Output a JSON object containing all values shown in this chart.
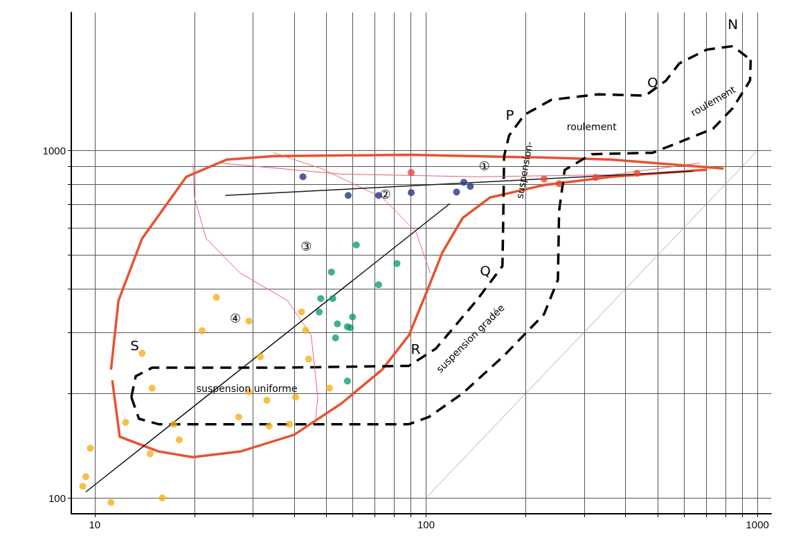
{
  "chart_data": {
    "type": "scatter",
    "log": "xy",
    "grid": true,
    "xlim": [
      8.5,
      1100
    ],
    "ylim": [
      90,
      2500
    ],
    "xticks": [
      10,
      {
        "value": 20,
        "label": null
      },
      {
        "value": 30,
        "label": null
      },
      {
        "value": 40,
        "label": null
      },
      {
        "value": 50,
        "label": null
      },
      {
        "value": 60,
        "label": null
      },
      {
        "value": 70,
        "label": null
      },
      {
        "value": 80,
        "label": null
      },
      {
        "value": 90,
        "label": null
      },
      100,
      {
        "value": 200,
        "label": null
      },
      {
        "value": 300,
        "label": null
      },
      {
        "value": 400,
        "label": null
      },
      {
        "value": 500,
        "label": null
      },
      {
        "value": 600,
        "label": null
      },
      {
        "value": 700,
        "label": null
      },
      {
        "value": 800,
        "label": null
      },
      {
        "value": 900,
        "label": null
      },
      1000
    ],
    "yticks": [
      100,
      {
        "value": 200,
        "label": null
      },
      {
        "value": 300,
        "label": null
      },
      {
        "value": 400,
        "label": null
      },
      {
        "value": 500,
        "label": null
      },
      {
        "value": 600,
        "label": null
      },
      {
        "value": 700,
        "label": null
      },
      {
        "value": 800,
        "label": null
      },
      {
        "value": 900,
        "label": null
      },
      1000
    ],
    "series": [
      {
        "marker": "circle",
        "color": "#f5b21c",
        "x": [
          9.2,
          9.4,
          9.7,
          11.2,
          12.4,
          13.9,
          14.9,
          14.7,
          16.0,
          17.3,
          18.0,
          21.1,
          23.3,
          27.2,
          29.2,
          29.2,
          31.6,
          33.1,
          33.6,
          38.7,
          40.4,
          42.1,
          43.3,
          44.2,
          51.1
        ],
        "values": [
          108,
          115,
          139,
          97,
          165,
          261,
          207,
          134,
          100,
          163,
          147,
          303,
          378,
          171,
          323,
          202,
          255,
          191,
          161,
          163,
          195,
          343,
          304,
          251,
          207
        ]
      },
      {
        "marker": "circle",
        "color": "#0e9f6e",
        "x": [
          61.6,
          51.8,
          81.7,
          71.9,
          48.1,
          52.3,
          47.6,
          60.0,
          54.0,
          57.9,
          59.1,
          53.3,
          57.9
        ],
        "values": [
          535,
          447,
          473,
          411,
          375,
          375,
          343,
          332,
          317,
          311,
          309,
          289,
          217
        ]
      },
      {
        "marker": "circle",
        "color": "#27348b",
        "x": [
          42.5,
          58.2,
          71.9,
          90.2,
          123.6,
          130,
          136
        ],
        "values": [
          841,
          743,
          743,
          757,
          760,
          811,
          789
        ]
      },
      {
        "marker": "circle",
        "color": "#e8473a",
        "x": [
          90.2,
          227,
          252,
          325,
          433
        ],
        "values": [
          865,
          829,
          803,
          837,
          861
        ]
      },
      {
        "type": "line",
        "color": "#e8522f",
        "line_style": "solid",
        "x": [
          11.2,
          11.8,
          13.9,
          18.9,
          25.0,
          34.7,
          88.8,
          227,
          363,
          791
        ],
        "values": [
          234,
          370,
          558,
          841,
          942,
          964,
          973,
          955,
          942,
          888
        ]
      },
      {
        "type": "line",
        "color": "#e8522f",
        "line_style": "solid",
        "x": [
          11.3,
          11.9,
          15.6,
          19.8,
          27.5,
          40.0,
          55.5,
          73.7,
          88.8,
          100,
          112,
          129,
          156,
          227,
          363,
          700
        ],
        "values": [
          218,
          150,
          136,
          131,
          136,
          152,
          187,
          234,
          294,
          388,
          509,
          640,
          733,
          796,
          841,
          881
        ]
      },
      {
        "type": "line",
        "color": "#000000",
        "line_style": "dashed",
        "x": [
          12.9,
          13.6,
          15.6,
          46.1,
          88.8,
          102,
          129,
          172,
          227,
          250,
          252,
          262,
          316,
          483,
          581,
          735,
          843,
          950,
          954
        ],
        "values": [
          195,
          169,
          163,
          163,
          163,
          171,
          200,
          257,
          338,
          425,
          669,
          880,
          977,
          986,
          1057,
          1157,
          1327,
          1592,
          1825
        ]
      },
      {
        "type": "line",
        "color": "#000000",
        "line_style": "dashed",
        "x": [
          12.9,
          13.3,
          14.9,
          34.7,
          88.8,
          107,
          142,
          170,
          171,
          172,
          178,
          198,
          239,
          331,
          459,
          530,
          581,
          703,
          843,
          954
        ],
        "values": [
          195,
          224,
          237,
          237,
          240,
          269,
          370,
          465,
          640,
          964,
          1105,
          1268,
          1401,
          1453,
          1440,
          1592,
          1783,
          1954,
          2000,
          1825
        ]
      },
      {
        "type": "line",
        "color": "#f0606a",
        "line_style": "solid",
        "x": [
          19.8,
          20.0,
          21.7,
          27.5,
          38.2,
          45.0,
          47.1,
          46.3
        ],
        "values": [
          913,
          733,
          558,
          444,
          370,
          294,
          195,
          163
        ]
      },
      {
        "type": "line",
        "color": "#f26b74",
        "line_style": "solid",
        "x": [
          34.7,
          48.3,
          73.7,
          93.2,
          103
        ],
        "values": [
          986,
          888,
          733,
          584,
          444
        ]
      },
      {
        "type": "line",
        "color": "#ee5a66",
        "line_style": "solid",
        "x": [
          23.8,
          55.5,
          142,
          363,
          671
        ],
        "values": [
          921,
          856,
          841,
          852,
          921
        ]
      },
      {
        "type": "line",
        "color": "#0d0d0d",
        "line_style": "solid",
        "x": [
          9.4,
          118
        ],
        "values": [
          104,
          704
        ]
      },
      {
        "type": "line",
        "color": "#1a1a1a",
        "line_style": "solid",
        "x": [
          24.8,
          640
        ],
        "values": [
          743,
          873
        ]
      },
      {
        "type": "line",
        "color": "#9a9a9a",
        "line_style": "solid",
        "x": [
          100,
          1000
        ],
        "values": [
          100,
          1000
        ]
      }
    ],
    "annotations": [
      "①",
      "②",
      "③",
      "④",
      "N",
      "O",
      "P",
      "Q",
      "R",
      "S",
      "roulement",
      "suspension-",
      "roulement",
      "suspension uniforme",
      "suspension gradée"
    ]
  }
}
